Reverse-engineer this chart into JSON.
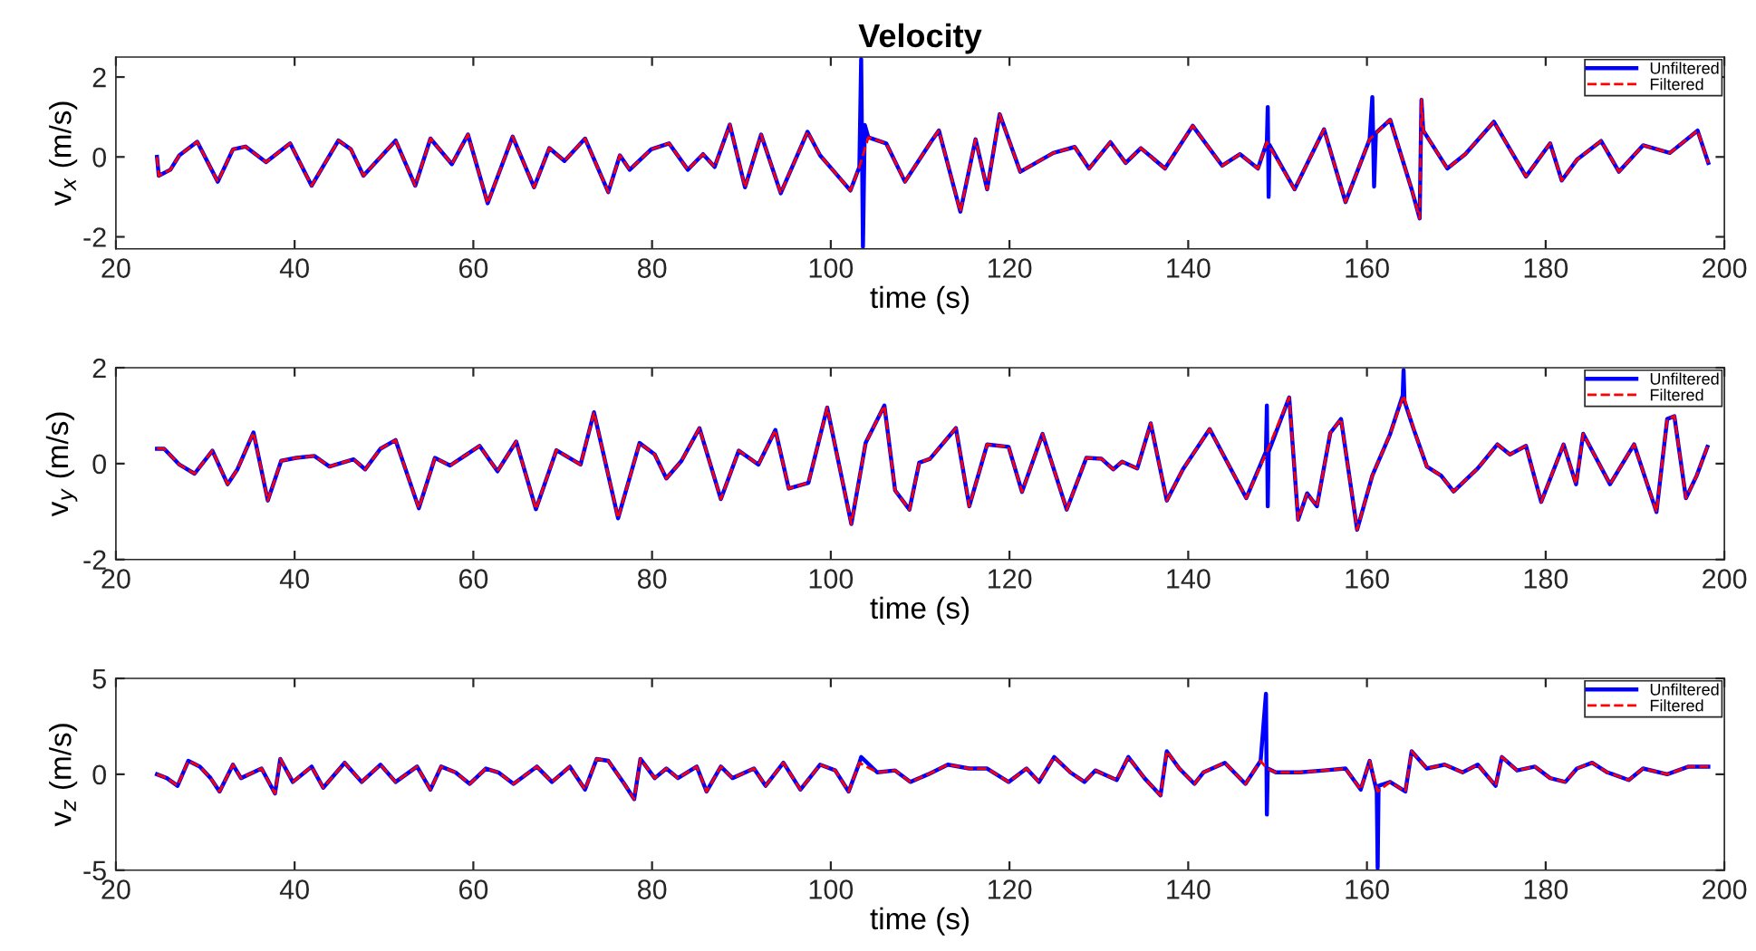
{
  "chart_data": [
    {
      "type": "line",
      "title": "Velocity",
      "xlabel": "time (s)",
      "ylabel": "v$_{x}$ (m/s)",
      "xlim": [
        20,
        200
      ],
      "xticks": [
        20,
        40,
        60,
        80,
        100,
        120,
        140,
        160,
        180,
        200
      ],
      "ylim": [
        -2.3,
        2.5
      ],
      "yticks": [
        -2,
        0,
        2
      ],
      "grid": false,
      "legend": "top right",
      "series": [
        {
          "name": "Unfiltered",
          "color": "#0000ff",
          "line_style": "solid",
          "x": [
            24.6,
            24.8,
            26.1,
            27.1,
            29.1,
            31.4,
            33.1,
            34.5,
            36.8,
            39.5,
            41.9,
            44.9,
            46.3,
            47.7,
            51.3,
            53.5,
            55.2,
            57.6,
            59.4,
            61.6,
            64.4,
            66.8,
            68.5,
            70.2,
            72.5,
            75.1,
            76.4,
            77.5,
            79.9,
            81.9,
            84.0,
            85.7,
            87.0,
            88.7,
            90.4,
            92.2,
            94.4,
            97.4,
            98.8,
            100.5,
            102.2,
            103.2,
            103.4,
            103.6,
            103.8,
            104.2,
            106.2,
            108.3,
            111.3,
            112.1,
            114.5,
            116.2,
            117.5,
            118.9,
            121.2,
            124.9,
            127.3,
            128.9,
            131.3,
            133.0,
            134.7,
            137.4,
            140.5,
            143.8,
            145.8,
            147.8,
            148.8,
            148.9,
            149.0,
            149.1,
            151.9,
            155.2,
            157.6,
            160.3,
            160.6,
            160.8,
            161.0,
            162.6,
            165.0,
            165.9,
            166.1,
            166.3,
            169.0,
            171.0,
            174.2,
            177.8,
            180.5,
            181.8,
            183.5,
            186.2,
            188.2,
            190.9,
            193.9,
            197.0,
            198.2
          ],
          "values": [
            0,
            -0.47,
            -0.32,
            0.04,
            0.38,
            -0.62,
            0.19,
            0.26,
            -0.13,
            0.34,
            -0.72,
            0.41,
            0.19,
            -0.47,
            0.41,
            -0.72,
            0.46,
            -0.18,
            0.56,
            -1.16,
            0.51,
            -0.76,
            0.22,
            -0.1,
            0.46,
            -0.88,
            0.04,
            -0.32,
            0.19,
            0.34,
            -0.32,
            0.07,
            -0.25,
            0.81,
            -0.76,
            0.56,
            -0.91,
            0.63,
            0.04,
            -0.4,
            -0.84,
            -0.25,
            2.45,
            -2.25,
            0.8,
            0.49,
            0.34,
            -0.62,
            0.41,
            0.66,
            -1.37,
            0.44,
            -0.81,
            1.07,
            -0.37,
            0.1,
            0.25,
            -0.29,
            0.37,
            -0.15,
            0.22,
            -0.29,
            0.78,
            -0.22,
            0.07,
            -0.29,
            0.37,
            1.25,
            -1.0,
            0.3,
            -0.81,
            0.69,
            -1.13,
            0.44,
            1.5,
            -0.74,
            0.6,
            0.93,
            -0.81,
            -1.54,
            1.43,
            0.66,
            -0.29,
            0.07,
            0.88,
            -0.49,
            0.34,
            -0.59,
            -0.07,
            0.4,
            -0.37,
            0.29,
            0.1,
            0.66,
            -0.15
          ]
        },
        {
          "name": "Filtered",
          "color": "#ff0000",
          "line_style": "dashed",
          "x": [
            24.6,
            24.8,
            26.1,
            27.1,
            29.1,
            31.4,
            33.1,
            34.5,
            36.8,
            39.5,
            41.9,
            44.9,
            46.3,
            47.7,
            51.3,
            53.5,
            55.2,
            57.6,
            59.4,
            61.6,
            64.4,
            66.8,
            68.5,
            70.2,
            72.5,
            75.1,
            76.4,
            77.5,
            79.9,
            81.9,
            84.0,
            85.7,
            87.0,
            88.7,
            90.4,
            92.2,
            94.4,
            97.4,
            98.8,
            100.5,
            102.2,
            103.2,
            104.2,
            106.2,
            108.3,
            111.3,
            112.1,
            114.5,
            116.2,
            117.5,
            118.9,
            121.2,
            124.9,
            127.3,
            128.9,
            131.3,
            133.0,
            134.7,
            137.4,
            140.5,
            143.8,
            145.8,
            147.8,
            148.8,
            151.9,
            155.2,
            157.6,
            160.3,
            162.6,
            165.0,
            165.9,
            166.1,
            166.3,
            169.0,
            171.0,
            174.2,
            177.8,
            180.5,
            181.8,
            183.5,
            186.2,
            188.2,
            190.9,
            193.9,
            197.0,
            198.2
          ],
          "values": [
            0,
            -0.47,
            -0.32,
            0.04,
            0.38,
            -0.62,
            0.19,
            0.26,
            -0.13,
            0.34,
            -0.72,
            0.41,
            0.19,
            -0.47,
            0.41,
            -0.72,
            0.46,
            -0.18,
            0.56,
            -1.16,
            0.51,
            -0.76,
            0.22,
            -0.1,
            0.46,
            -0.88,
            0.04,
            -0.32,
            0.19,
            0.34,
            -0.32,
            0.07,
            -0.25,
            0.81,
            -0.76,
            0.56,
            -0.91,
            0.63,
            0.04,
            -0.4,
            -0.84,
            -0.25,
            0.49,
            0.34,
            -0.62,
            0.41,
            0.66,
            -1.37,
            0.44,
            -0.81,
            1.07,
            -0.37,
            0.1,
            0.25,
            -0.29,
            0.37,
            -0.15,
            0.22,
            -0.29,
            0.78,
            -0.22,
            0.07,
            -0.29,
            0.37,
            -0.81,
            0.69,
            -1.13,
            0.44,
            0.93,
            -0.81,
            -1.54,
            1.43,
            0.66,
            -0.29,
            0.07,
            0.88,
            -0.49,
            0.34,
            -0.59,
            -0.07,
            0.4,
            -0.37,
            0.29,
            0.1,
            0.66,
            -0.15
          ]
        }
      ]
    },
    {
      "type": "line",
      "xlabel": "time (s)",
      "ylabel": "v$_{y}$ (m/s)",
      "xlim": [
        20,
        200
      ],
      "xticks": [
        20,
        40,
        60,
        80,
        100,
        120,
        140,
        160,
        180,
        200
      ],
      "ylim": [
        -2,
        2
      ],
      "yticks": [
        -2,
        0,
        2
      ],
      "grid": false,
      "legend": "top right",
      "series": [
        {
          "name": "Unfiltered",
          "color": "#0000ff",
          "line_style": "solid",
          "x": [
            24.6,
            25.4,
            27.1,
            28.8,
            30.8,
            32.5,
            33.6,
            35.4,
            37.0,
            38.5,
            40.2,
            42.2,
            43.9,
            46.6,
            47.9,
            49.6,
            51.3,
            53.9,
            55.7,
            57.4,
            60.7,
            62.7,
            64.8,
            67.0,
            69.3,
            72.0,
            73.5,
            76.2,
            78.6,
            80.3,
            81.6,
            83.3,
            85.3,
            87.7,
            89.7,
            91.9,
            93.8,
            95.3,
            97.5,
            99.6,
            102.3,
            103.9,
            106.0,
            107.2,
            108.8,
            109.9,
            111.1,
            114.0,
            115.5,
            117.5,
            119.9,
            121.4,
            123.7,
            126.4,
            128.6,
            130.3,
            131.6,
            132.6,
            134.3,
            135.8,
            137.6,
            139.4,
            142.4,
            146.5,
            148.7,
            148.8,
            148.9,
            149.0,
            151.3,
            152.3,
            153.3,
            154.4,
            155.9,
            157.1,
            158.9,
            160.6,
            162.6,
            164.0,
            164.1,
            164.2,
            165.3,
            166.7,
            168.3,
            169.7,
            172.4,
            174.6,
            176.0,
            177.8,
            179.5,
            182.0,
            183.4,
            184.2,
            187.2,
            189.9,
            192.4,
            193.6,
            194.4,
            195.7,
            196.9,
            198.1
          ],
          "values": [
            0.31,
            0.31,
            -0.02,
            -0.21,
            0.27,
            -0.43,
            -0.12,
            0.65,
            -0.77,
            0.06,
            0.12,
            0.16,
            -0.06,
            0.09,
            -0.12,
            0.31,
            0.49,
            -0.93,
            0.12,
            -0.04,
            0.37,
            -0.16,
            0.46,
            -0.95,
            0.28,
            -0.02,
            1.07,
            -1.14,
            0.43,
            0.19,
            -0.31,
            0.06,
            0.74,
            -0.74,
            0.27,
            -0.02,
            0.7,
            -0.52,
            -0.4,
            1.17,
            -1.26,
            0.43,
            1.21,
            -0.56,
            -0.96,
            0.02,
            0.1,
            0.74,
            -0.89,
            0.4,
            0.35,
            -0.59,
            0.62,
            -0.96,
            0.12,
            0.1,
            -0.12,
            0.04,
            -0.1,
            0.84,
            -0.77,
            -0.12,
            0.72,
            -0.72,
            0.25,
            1.21,
            -0.89,
            0.25,
            1.38,
            -1.17,
            -0.62,
            -0.89,
            0.64,
            0.93,
            -1.38,
            -0.25,
            0.62,
            1.42,
            1.95,
            1.3,
            0.68,
            -0.06,
            -0.25,
            -0.58,
            -0.1,
            0.4,
            0.19,
            0.37,
            -0.8,
            0.4,
            -0.43,
            0.62,
            -0.43,
            0.4,
            -1.01,
            0.93,
            0.99,
            -0.72,
            -0.25,
            0.35
          ]
        },
        {
          "name": "Filtered",
          "color": "#ff0000",
          "line_style": "dashed",
          "x": [
            24.6,
            25.4,
            27.1,
            28.8,
            30.8,
            32.5,
            33.6,
            35.4,
            37.0,
            38.5,
            40.2,
            42.2,
            43.9,
            46.6,
            47.9,
            49.6,
            51.3,
            53.9,
            55.7,
            57.4,
            60.7,
            62.7,
            64.8,
            67.0,
            69.3,
            72.0,
            73.5,
            76.2,
            78.6,
            80.3,
            81.6,
            83.3,
            85.3,
            87.7,
            89.7,
            91.9,
            93.8,
            95.3,
            97.5,
            99.6,
            102.3,
            103.9,
            106.0,
            107.2,
            108.8,
            109.9,
            111.1,
            114.0,
            115.5,
            117.5,
            119.9,
            121.4,
            123.7,
            126.4,
            128.6,
            130.3,
            131.6,
            132.6,
            134.3,
            135.8,
            137.6,
            139.4,
            142.4,
            146.5,
            148.8,
            151.3,
            152.3,
            153.3,
            154.4,
            155.9,
            157.1,
            158.9,
            160.6,
            162.6,
            164.1,
            165.3,
            166.7,
            168.3,
            169.7,
            172.4,
            174.6,
            176.0,
            177.8,
            179.5,
            182.0,
            183.4,
            184.2,
            187.2,
            189.9,
            192.4,
            193.6,
            194.4,
            195.7,
            196.9,
            198.1
          ],
          "values": [
            0.31,
            0.31,
            -0.02,
            -0.21,
            0.27,
            -0.43,
            -0.12,
            0.65,
            -0.77,
            0.06,
            0.12,
            0.16,
            -0.06,
            0.09,
            -0.12,
            0.31,
            0.49,
            -0.93,
            0.12,
            -0.04,
            0.37,
            -0.16,
            0.46,
            -0.95,
            0.28,
            -0.02,
            1.07,
            -1.14,
            0.43,
            0.19,
            -0.31,
            0.06,
            0.74,
            -0.74,
            0.27,
            -0.02,
            0.7,
            -0.52,
            -0.4,
            1.17,
            -1.26,
            0.43,
            1.21,
            -0.56,
            -0.96,
            0.02,
            0.1,
            0.74,
            -0.89,
            0.4,
            0.35,
            -0.59,
            0.62,
            -0.96,
            0.12,
            0.1,
            -0.12,
            0.04,
            -0.1,
            0.84,
            -0.77,
            -0.12,
            0.72,
            -0.72,
            0.25,
            1.38,
            -1.17,
            -0.62,
            -0.89,
            0.64,
            0.93,
            -1.38,
            -0.25,
            0.62,
            1.42,
            0.68,
            -0.06,
            -0.25,
            -0.58,
            -0.1,
            0.4,
            0.19,
            0.37,
            -0.8,
            0.4,
            -0.43,
            0.62,
            -0.43,
            0.4,
            -1.01,
            0.93,
            0.99,
            -0.72,
            -0.25,
            0.35
          ]
        }
      ]
    },
    {
      "type": "line",
      "xlabel": "time (s)",
      "ylabel": "v$_{z}$ (m/s)",
      "xlim": [
        20,
        200
      ],
      "xticks": [
        20,
        40,
        60,
        80,
        100,
        120,
        140,
        160,
        180,
        200
      ],
      "ylim": [
        -5,
        5
      ],
      "yticks": [
        -5,
        0,
        5
      ],
      "grid": false,
      "legend": "top right",
      "series": [
        {
          "name": "Unfiltered",
          "color": "#0000ff",
          "line_style": "solid",
          "x": [
            24.6,
            25.7,
            26.9,
            28.1,
            29.4,
            30.6,
            31.6,
            33.1,
            34.0,
            36.3,
            37.8,
            38.4,
            39.8,
            41.9,
            43.2,
            45.6,
            47.5,
            49.6,
            51.3,
            53.7,
            55.2,
            56.4,
            58.0,
            59.6,
            61.4,
            62.8,
            64.5,
            67.1,
            68.8,
            70.8,
            72.5,
            73.8,
            75.1,
            76.9,
            78.0,
            78.7,
            80.3,
            81.6,
            82.9,
            85.0,
            86.1,
            87.7,
            89.0,
            91.4,
            92.7,
            94.7,
            96.6,
            98.8,
            100.5,
            102.0,
            103.2,
            103.4,
            105.2,
            107.2,
            108.9,
            110.9,
            113.1,
            115.5,
            117.5,
            119.9,
            121.9,
            123.3,
            125.0,
            126.8,
            128.4,
            129.6,
            132.0,
            133.3,
            135.1,
            136.9,
            137.6,
            139.0,
            140.7,
            141.7,
            144.1,
            146.4,
            148.1,
            148.7,
            148.8,
            148.9,
            149.8,
            152.5,
            155.2,
            157.6,
            159.3,
            160.3,
            161.1,
            161.2,
            161.3,
            162.6,
            164.3,
            165.0,
            166.7,
            168.7,
            170.7,
            172.4,
            174.4,
            175.1,
            176.8,
            178.8,
            180.5,
            182.2,
            183.5,
            185.2,
            186.9,
            189.3,
            190.9,
            193.6,
            196.0,
            198.2
          ],
          "values": [
            0,
            -0.2,
            -0.6,
            0.7,
            0.4,
            -0.2,
            -0.9,
            0.5,
            -0.2,
            0.3,
            -1.0,
            0.8,
            -0.4,
            0.4,
            -0.7,
            0.6,
            -0.4,
            0.5,
            -0.4,
            0.4,
            -0.8,
            0.4,
            0.1,
            -0.5,
            0.3,
            0.1,
            -0.5,
            0.4,
            -0.4,
            0.4,
            -0.8,
            0.8,
            0.7,
            -0.5,
            -1.3,
            0.8,
            -0.2,
            0.3,
            -0.2,
            0.4,
            -0.9,
            0.4,
            -0.2,
            0.3,
            -0.6,
            0.6,
            -0.8,
            0.5,
            0.2,
            -0.9,
            0.6,
            0.9,
            0.1,
            0.2,
            -0.4,
            0,
            0.5,
            0.3,
            0.3,
            -0.4,
            0.3,
            -0.4,
            0.9,
            0.1,
            -0.4,
            0.2,
            -0.3,
            0.9,
            -0.2,
            -1.1,
            1.2,
            0.3,
            -0.5,
            0.1,
            0.6,
            -0.5,
            0.7,
            4.2,
            -2.1,
            0.3,
            0.1,
            0.1,
            0.2,
            0.3,
            -0.8,
            0.7,
            -0.9,
            -4.9,
            -0.6,
            -0.4,
            -0.9,
            1.2,
            0.3,
            0.5,
            0.1,
            0.5,
            -0.6,
            0.9,
            0.2,
            0.4,
            -0.2,
            -0.4,
            0.3,
            0.6,
            0.1,
            -0.3,
            0.3,
            0,
            0.4,
            0.4
          ]
        },
        {
          "name": "Filtered",
          "color": "#ff0000",
          "line_style": "dashed",
          "x": [
            24.6,
            25.7,
            26.9,
            28.1,
            29.4,
            30.6,
            31.6,
            33.1,
            34.0,
            36.3,
            37.8,
            38.4,
            39.8,
            41.9,
            43.2,
            45.6,
            47.5,
            49.6,
            51.3,
            53.7,
            55.2,
            56.4,
            58.0,
            59.6,
            61.4,
            62.8,
            64.5,
            67.1,
            68.8,
            70.8,
            72.5,
            73.8,
            75.1,
            76.9,
            78.0,
            78.7,
            80.3,
            81.6,
            82.9,
            85.0,
            86.1,
            87.7,
            89.0,
            91.4,
            92.7,
            94.7,
            96.6,
            98.8,
            100.5,
            102.0,
            103.2,
            105.2,
            107.2,
            108.9,
            110.9,
            113.1,
            115.5,
            117.5,
            119.9,
            121.9,
            123.3,
            125.0,
            126.8,
            128.4,
            129.6,
            132.0,
            133.3,
            135.1,
            136.9,
            137.6,
            139.0,
            140.7,
            141.7,
            144.1,
            146.4,
            148.1,
            148.8,
            149.8,
            152.5,
            155.2,
            157.6,
            159.3,
            160.3,
            161.2,
            162.6,
            164.3,
            165.0,
            166.7,
            168.7,
            170.7,
            172.4,
            174.4,
            175.1,
            176.8,
            178.8,
            180.5,
            182.2,
            183.5,
            185.2,
            186.9,
            189.3,
            190.9,
            193.6,
            196.0,
            198.2
          ],
          "values": [
            0,
            -0.2,
            -0.6,
            0.7,
            0.4,
            -0.2,
            -0.9,
            0.5,
            -0.2,
            0.3,
            -1.0,
            0.8,
            -0.4,
            0.4,
            -0.7,
            0.6,
            -0.4,
            0.5,
            -0.4,
            0.4,
            -0.8,
            0.4,
            0.1,
            -0.5,
            0.3,
            0.1,
            -0.5,
            0.4,
            -0.4,
            0.4,
            -0.8,
            0.8,
            0.7,
            -0.5,
            -1.3,
            0.8,
            -0.2,
            0.3,
            -0.2,
            0.4,
            -0.9,
            0.4,
            -0.2,
            0.3,
            -0.6,
            0.6,
            -0.8,
            0.5,
            0.2,
            -0.9,
            0.6,
            0.1,
            0.2,
            -0.4,
            0,
            0.5,
            0.3,
            0.3,
            -0.4,
            0.3,
            -0.4,
            0.9,
            0.1,
            -0.4,
            0.2,
            -0.3,
            0.9,
            -0.2,
            -1.1,
            1.2,
            0.3,
            -0.5,
            0.1,
            0.6,
            -0.5,
            0.7,
            0.3,
            0.1,
            0.1,
            0.2,
            0.3,
            -0.8,
            0.7,
            -0.9,
            -0.4,
            -0.9,
            1.2,
            0.3,
            0.5,
            0.1,
            0.5,
            -0.6,
            0.9,
            0.2,
            0.4,
            -0.2,
            -0.4,
            0.3,
            0.6,
            0.1,
            -0.3,
            0.3,
            0,
            0.4,
            0.4
          ]
        }
      ]
    }
  ]
}
